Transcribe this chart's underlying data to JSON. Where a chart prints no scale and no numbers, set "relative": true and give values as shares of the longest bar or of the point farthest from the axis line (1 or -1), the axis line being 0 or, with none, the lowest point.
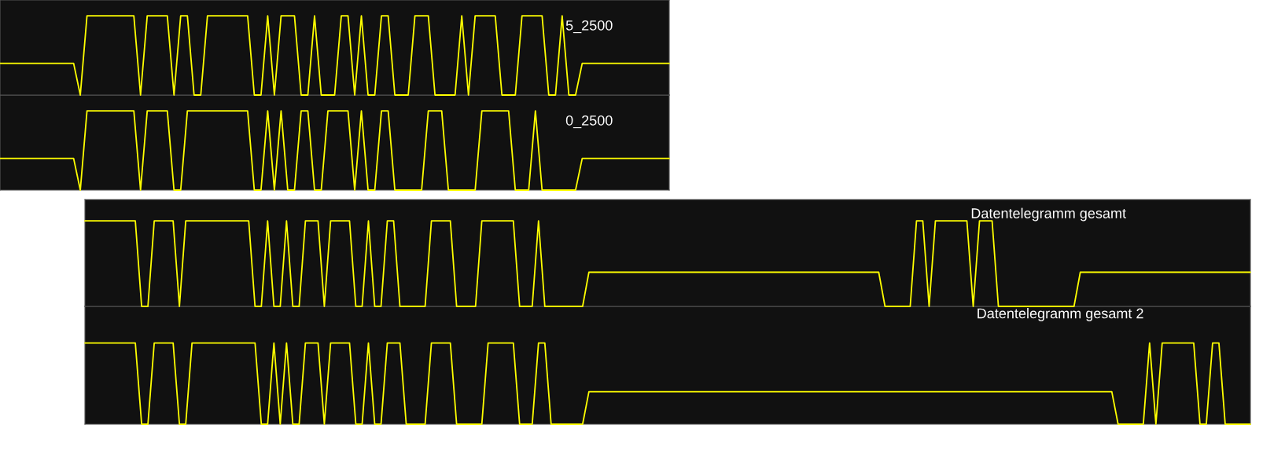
{
  "chart_data": [
    {
      "type": "line",
      "relative": true,
      "title": "5_2500",
      "categories": [
        null,
        null,
        null,
        null,
        null,
        null,
        null,
        null,
        null,
        null,
        null,
        null,
        null,
        null,
        null,
        null,
        null,
        null,
        null,
        null,
        null,
        null,
        null,
        null,
        null,
        null,
        null,
        null,
        null,
        null,
        null,
        null,
        null,
        null,
        null,
        null,
        null,
        null,
        null,
        null,
        null,
        null,
        null,
        null,
        null,
        null,
        null,
        null,
        null,
        null,
        null,
        null,
        null,
        null,
        null,
        null,
        null,
        null,
        null,
        null,
        null,
        null,
        null,
        null,
        null,
        null,
        null,
        null,
        null,
        null,
        null,
        null,
        null,
        null,
        null,
        null,
        null,
        null,
        null,
        null,
        null,
        null,
        null,
        null,
        null,
        null,
        null,
        null,
        null,
        null,
        null,
        null,
        null,
        null,
        null,
        null,
        null,
        null,
        null,
        null,
        null
      ],
      "series": [
        {
          "color": "#ffff00",
          "values": [
            0.4,
            0.4,
            0.4,
            0.4,
            0.4,
            0.4,
            0.4,
            0.4,
            0.4,
            0.4,
            0.4,
            0.4,
            0,
            1,
            1,
            1,
            1,
            1,
            1,
            1,
            1,
            0,
            1,
            1,
            1,
            1,
            0,
            1,
            1,
            0,
            0,
            1,
            1,
            1,
            1,
            1,
            1,
            1,
            0,
            0,
            1,
            0,
            1,
            1,
            1,
            0,
            0,
            1,
            0,
            0,
            0,
            1,
            1,
            0,
            1,
            0,
            0,
            1,
            1,
            0,
            0,
            0,
            1,
            1,
            1,
            0,
            0,
            0,
            0,
            1,
            0,
            1,
            1,
            1,
            1,
            0,
            0,
            0,
            1,
            1,
            1,
            1,
            0,
            0,
            1,
            0,
            0,
            0.4,
            0.4,
            0.4,
            0.4,
            0.4,
            0.4,
            0.4,
            0.4,
            0.4,
            0.4,
            0.4,
            0.4,
            0.4,
            0.4
          ]
        }
      ]
    },
    {
      "type": "line",
      "relative": true,
      "title": "0_2500",
      "categories": [
        null,
        null,
        null,
        null,
        null,
        null,
        null,
        null,
        null,
        null,
        null,
        null,
        null,
        null,
        null,
        null,
        null,
        null,
        null,
        null,
        null,
        null,
        null,
        null,
        null,
        null,
        null,
        null,
        null,
        null,
        null,
        null,
        null,
        null,
        null,
        null,
        null,
        null,
        null,
        null,
        null,
        null,
        null,
        null,
        null,
        null,
        null,
        null,
        null,
        null,
        null,
        null,
        null,
        null,
        null,
        null,
        null,
        null,
        null,
        null,
        null,
        null,
        null,
        null,
        null,
        null,
        null,
        null,
        null,
        null,
        null,
        null,
        null,
        null,
        null,
        null,
        null,
        null,
        null,
        null,
        null,
        null,
        null,
        null,
        null,
        null,
        null,
        null,
        null,
        null,
        null,
        null,
        null,
        null,
        null,
        null,
        null,
        null,
        null,
        null,
        null
      ],
      "series": [
        {
          "color": "#ffff00",
          "values": [
            0.4,
            0.4,
            0.4,
            0.4,
            0.4,
            0.4,
            0.4,
            0.4,
            0.4,
            0.4,
            0.4,
            0.4,
            0,
            1,
            1,
            1,
            1,
            1,
            1,
            1,
            1,
            0,
            1,
            1,
            1,
            1,
            0,
            0,
            1,
            1,
            1,
            1,
            1,
            1,
            1,
            1,
            1,
            1,
            0,
            0,
            1,
            0,
            1,
            0,
            0,
            1,
            1,
            0,
            0,
            1,
            1,
            1,
            1,
            0,
            1,
            0,
            0,
            1,
            1,
            0,
            0,
            0,
            0,
            0,
            1,
            1,
            1,
            0,
            0,
            0,
            0,
            0,
            1,
            1,
            1,
            1,
            1,
            0,
            0,
            0,
            1,
            0,
            0,
            0,
            0,
            0,
            0,
            0.4,
            0.4,
            0.4,
            0.4,
            0.4,
            0.4,
            0.4,
            0.4,
            0.4,
            0.4,
            0.4,
            0.4,
            0.4,
            0.4
          ]
        }
      ]
    },
    {
      "type": "line",
      "relative": true,
      "title": "Datentelegramm gesamt",
      "categories": [
        null,
        null,
        null,
        null,
        null,
        null,
        null,
        null,
        null,
        null,
        null,
        null,
        null,
        null,
        null,
        null,
        null,
        null,
        null,
        null,
        null,
        null,
        null,
        null,
        null,
        null,
        null,
        null,
        null,
        null,
        null,
        null,
        null,
        null,
        null,
        null,
        null,
        null,
        null,
        null,
        null,
        null,
        null,
        null,
        null,
        null,
        null,
        null,
        null,
        null,
        null,
        null,
        null,
        null,
        null,
        null,
        null,
        null,
        null,
        null,
        null,
        null,
        null,
        null,
        null,
        null,
        null,
        null,
        null,
        null,
        null,
        null,
        null,
        null,
        null,
        null,
        null,
        null,
        null,
        null,
        null,
        null,
        null,
        null,
        null,
        null,
        null,
        null,
        null,
        null,
        null,
        null,
        null,
        null,
        null,
        null,
        null,
        null,
        null,
        null,
        null,
        null,
        null,
        null,
        null,
        null,
        null,
        null,
        null,
        null,
        null,
        null,
        null,
        null,
        null,
        null,
        null,
        null,
        null,
        null,
        null,
        null,
        null,
        null,
        null,
        null,
        null,
        null,
        null,
        null,
        null,
        null,
        null,
        null,
        null,
        null,
        null,
        null,
        null,
        null,
        null,
        null,
        null,
        null,
        null,
        null,
        null,
        null,
        null,
        null,
        null,
        null,
        null,
        null,
        null,
        null,
        null,
        null,
        null,
        null,
        null,
        null,
        null,
        null,
        null,
        null,
        null,
        null,
        null,
        null,
        null,
        null,
        null,
        null,
        null,
        null,
        null,
        null,
        null,
        null,
        null,
        null,
        null,
        null,
        null,
        null
      ],
      "series": [
        {
          "color": "#ffff00",
          "values": [
            1,
            1,
            1,
            1,
            1,
            1,
            1,
            1,
            1,
            0,
            0,
            1,
            1,
            1,
            1,
            0,
            1,
            1,
            1,
            1,
            1,
            1,
            1,
            1,
            1,
            1,
            1,
            0,
            0,
            1,
            0,
            0,
            1,
            0,
            0,
            1,
            1,
            1,
            0,
            1,
            1,
            1,
            1,
            0,
            0,
            1,
            0,
            0,
            1,
            1,
            0,
            0,
            0,
            0,
            0,
            1,
            1,
            1,
            1,
            0,
            0,
            0,
            0,
            1,
            1,
            1,
            1,
            1,
            1,
            0,
            0,
            0,
            1,
            0,
            0,
            0,
            0,
            0,
            0,
            0,
            0.4,
            0.4,
            0.4,
            0.4,
            0.4,
            0.4,
            0.4,
            0.4,
            0.4,
            0.4,
            0.4,
            0.4,
            0.4,
            0.4,
            0.4,
            0.4,
            0.4,
            0.4,
            0.4,
            0.4,
            0.4,
            0.4,
            0.4,
            0.4,
            0.4,
            0.4,
            0.4,
            0.4,
            0.4,
            0.4,
            0.4,
            0.4,
            0.4,
            0.4,
            0.4,
            0.4,
            0.4,
            0.4,
            0.4,
            0.4,
            0.4,
            0.4,
            0.4,
            0.4,
            0.4,
            0.4,
            0.4,
            0,
            0,
            0,
            0,
            0,
            1,
            1,
            0,
            1,
            1,
            1,
            1,
            1,
            1,
            0,
            1,
            1,
            1,
            0,
            0,
            0,
            0,
            0,
            0,
            0,
            0,
            0,
            0,
            0,
            0,
            0,
            0.4,
            0.4,
            0.4,
            0.4,
            0.4,
            0.4,
            0.4,
            0.4,
            0.4,
            0.4,
            0.4,
            0.4,
            0.4,
            0.4,
            0.4,
            0.4,
            0.4,
            0.4,
            0.4,
            0.4,
            0.4,
            0.4,
            0.4,
            0.4,
            0.4,
            0.4,
            0.4,
            0.4
          ]
        }
      ]
    },
    {
      "type": "line",
      "relative": true,
      "title": "Datentelegramm gesamt 2",
      "categories": [
        null,
        null,
        null,
        null,
        null,
        null,
        null,
        null,
        null,
        null,
        null,
        null,
        null,
        null,
        null,
        null,
        null,
        null,
        null,
        null,
        null,
        null,
        null,
        null,
        null,
        null,
        null,
        null,
        null,
        null,
        null,
        null,
        null,
        null,
        null,
        null,
        null,
        null,
        null,
        null,
        null,
        null,
        null,
        null,
        null,
        null,
        null,
        null,
        null,
        null,
        null,
        null,
        null,
        null,
        null,
        null,
        null,
        null,
        null,
        null,
        null,
        null,
        null,
        null,
        null,
        null,
        null,
        null,
        null,
        null,
        null,
        null,
        null,
        null,
        null,
        null,
        null,
        null,
        null,
        null,
        null,
        null,
        null,
        null,
        null,
        null,
        null,
        null,
        null,
        null,
        null,
        null,
        null,
        null,
        null,
        null,
        null,
        null,
        null,
        null,
        null,
        null,
        null,
        null,
        null,
        null,
        null,
        null,
        null,
        null,
        null,
        null,
        null,
        null,
        null,
        null,
        null,
        null,
        null,
        null,
        null,
        null,
        null,
        null,
        null,
        null,
        null,
        null,
        null,
        null,
        null,
        null,
        null,
        null,
        null,
        null,
        null,
        null,
        null,
        null,
        null,
        null,
        null,
        null,
        null,
        null,
        null,
        null,
        null,
        null,
        null,
        null,
        null,
        null,
        null,
        null,
        null,
        null,
        null,
        null,
        null,
        null,
        null,
        null,
        null,
        null,
        null,
        null,
        null,
        null,
        null,
        null,
        null,
        null,
        null,
        null,
        null,
        null,
        null,
        null,
        null,
        null,
        null,
        null,
        null,
        null
      ],
      "series": [
        {
          "color": "#ffff00",
          "values": [
            1,
            1,
            1,
            1,
            1,
            1,
            1,
            1,
            1,
            0,
            0,
            1,
            1,
            1,
            1,
            0,
            0,
            1,
            1,
            1,
            1,
            1,
            1,
            1,
            1,
            1,
            1,
            1,
            0,
            0,
            1,
            0,
            1,
            0,
            0,
            1,
            1,
            1,
            0,
            1,
            1,
            1,
            1,
            0,
            0,
            1,
            0,
            0,
            1,
            1,
            1,
            0,
            0,
            0,
            0,
            1,
            1,
            1,
            1,
            0,
            0,
            0,
            0,
            0,
            1,
            1,
            1,
            1,
            1,
            0,
            0,
            0,
            1,
            1,
            0,
            0,
            0,
            0,
            0,
            0,
            0.4,
            0.4,
            0.4,
            0.4,
            0.4,
            0.4,
            0.4,
            0.4,
            0.4,
            0.4,
            0.4,
            0.4,
            0.4,
            0.4,
            0.4,
            0.4,
            0.4,
            0.4,
            0.4,
            0.4,
            0.4,
            0.4,
            0.4,
            0.4,
            0.4,
            0.4,
            0.4,
            0.4,
            0.4,
            0.4,
            0.4,
            0.4,
            0.4,
            0.4,
            0.4,
            0.4,
            0.4,
            0.4,
            0.4,
            0.4,
            0.4,
            0.4,
            0.4,
            0.4,
            0.4,
            0.4,
            0.4,
            0.4,
            0.4,
            0.4,
            0.4,
            0.4,
            0.4,
            0.4,
            0.4,
            0.4,
            0.4,
            0.4,
            0.4,
            0.4,
            0.4,
            0.4,
            0.4,
            0.4,
            0.4,
            0.4,
            0.4,
            0.4,
            0.4,
            0.4,
            0.4,
            0.4,
            0.4,
            0.4,
            0.4,
            0.4,
            0.4,
            0.4,
            0.4,
            0.4,
            0.4,
            0.4,
            0.4,
            0.4,
            0,
            0,
            0,
            0,
            0,
            1,
            0,
            1,
            1,
            1,
            1,
            1,
            1,
            0,
            0,
            1,
            1,
            0,
            0,
            0,
            0,
            0
          ]
        }
      ]
    }
  ]
}
